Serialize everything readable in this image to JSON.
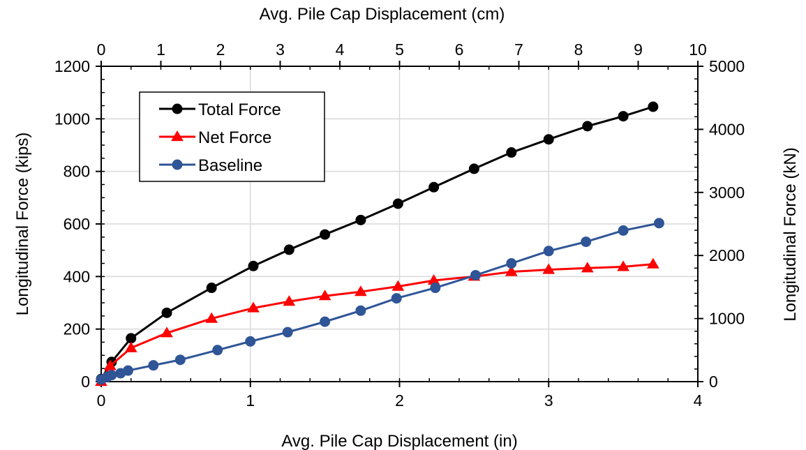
{
  "chart_data": {
    "type": "line",
    "xlabel": "Avg. Pile Cap Displacement (in)",
    "ylabel": "Longitudinal Force (kips)",
    "x2label": "Avg. Pile Cap Displacement (cm)",
    "y2label": "Longitudinal Force (kN)",
    "xlim": [
      0,
      4
    ],
    "ylim": [
      0,
      1200
    ],
    "x2lim": [
      0,
      10
    ],
    "y2lim": [
      0,
      5000
    ],
    "x_ticks": [
      0,
      1,
      2,
      3,
      4
    ],
    "y_ticks": [
      0,
      200,
      400,
      600,
      800,
      1000,
      1200
    ],
    "x2_ticks": [
      0,
      1,
      2,
      3,
      4,
      5,
      6,
      7,
      8,
      9,
      10
    ],
    "y2_ticks": [
      0,
      1000,
      2000,
      3000,
      4000,
      5000
    ],
    "grid": true,
    "legend_position": "top-left",
    "series": [
      {
        "name": "Total Force",
        "color": "#000000",
        "marker": "circle",
        "x": [
          0,
          0.07,
          0.2,
          0.44,
          0.74,
          1.02,
          1.26,
          1.5,
          1.74,
          1.99,
          2.23,
          2.5,
          2.75,
          3.0,
          3.26,
          3.5,
          3.7
        ],
        "y": [
          10,
          75,
          165,
          262,
          357,
          440,
          502,
          560,
          615,
          677,
          740,
          810,
          872,
          922,
          972,
          1010,
          1046
        ]
      },
      {
        "name": "Net Force",
        "color": "#ff0000",
        "marker": "triangle",
        "x": [
          0,
          0.06,
          0.2,
          0.44,
          0.74,
          1.02,
          1.26,
          1.5,
          1.74,
          1.99,
          2.23,
          2.5,
          2.75,
          3.0,
          3.26,
          3.5,
          3.7
        ],
        "y": [
          0,
          60,
          128,
          185,
          240,
          280,
          305,
          326,
          342,
          362,
          385,
          400,
          418,
          426,
          432,
          437,
          447
        ]
      },
      {
        "name": "Baseline",
        "color": "#2f5597",
        "marker": "circle",
        "x": [
          0,
          0.04,
          0.07,
          0.13,
          0.18,
          0.35,
          0.53,
          0.78,
          1.0,
          1.25,
          1.5,
          1.74,
          1.98,
          2.24,
          2.51,
          2.75,
          3.0,
          3.25,
          3.5,
          3.74
        ],
        "y": [
          8,
          18,
          25,
          32,
          42,
          62,
          83,
          120,
          153,
          188,
          228,
          270,
          317,
          357,
          405,
          450,
          497,
          532,
          575,
          603
        ]
      }
    ]
  }
}
